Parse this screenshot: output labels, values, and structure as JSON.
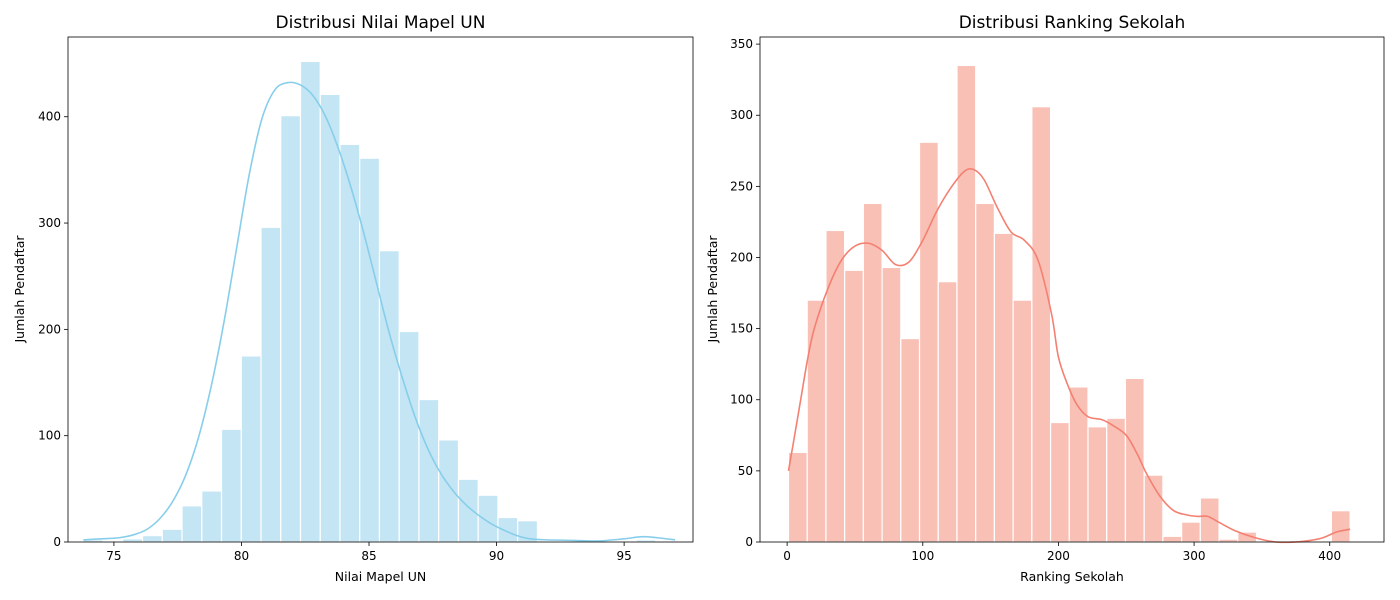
{
  "chart_data": [
    {
      "type": "histogram",
      "title": "Distribusi Nilai Mapel UN",
      "xlabel": "Nilai Mapel UN",
      "ylabel": "Jumlah Pendaftar",
      "xlim": [
        73.2,
        97.7
      ],
      "ylim": [
        0,
        475
      ],
      "xticks": [
        75,
        80,
        85,
        90,
        95
      ],
      "yticks": [
        0,
        100,
        200,
        300,
        400
      ],
      "bin_start": 73.8,
      "bin_width": 0.774,
      "counts": [
        2,
        0,
        3,
        6,
        12,
        34,
        48,
        106,
        175,
        296,
        401,
        452,
        421,
        374,
        361,
        274,
        198,
        134,
        96,
        59,
        44,
        23,
        20,
        0,
        1,
        2,
        0,
        0,
        2,
        1
      ],
      "kde": [
        [
          73.8,
          2
        ],
        [
          74.5,
          3
        ],
        [
          75.2,
          4
        ],
        [
          75.8,
          7
        ],
        [
          76.3,
          12
        ],
        [
          76.8,
          22
        ],
        [
          77.3,
          38
        ],
        [
          77.8,
          62
        ],
        [
          78.3,
          97
        ],
        [
          78.8,
          145
        ],
        [
          79.3,
          205
        ],
        [
          79.8,
          275
        ],
        [
          80.3,
          345
        ],
        [
          80.8,
          398
        ],
        [
          81.3,
          425
        ],
        [
          81.8,
          432
        ],
        [
          82.3,
          430
        ],
        [
          82.8,
          420
        ],
        [
          83.3,
          400
        ],
        [
          83.8,
          370
        ],
        [
          84.3,
          333
        ],
        [
          84.8,
          290
        ],
        [
          85.3,
          243
        ],
        [
          85.8,
          196
        ],
        [
          86.3,
          155
        ],
        [
          86.8,
          118
        ],
        [
          87.3,
          88
        ],
        [
          87.8,
          65
        ],
        [
          88.3,
          48
        ],
        [
          88.8,
          35
        ],
        [
          89.3,
          25
        ],
        [
          89.8,
          17
        ],
        [
          90.3,
          11
        ],
        [
          90.8,
          6
        ],
        [
          91.3,
          3
        ],
        [
          92,
          2
        ],
        [
          93,
          1.5
        ],
        [
          94,
          1
        ],
        [
          95,
          3
        ],
        [
          95.7,
          5
        ],
        [
          96.3,
          4
        ],
        [
          97,
          2
        ]
      ],
      "color_fill": "#c3e5f4",
      "color_line": "#87ceeb"
    },
    {
      "type": "histogram",
      "title": "Distribusi Ranking Sekolah",
      "xlabel": "Ranking Sekolah",
      "ylabel": "Jumlah Pendaftar",
      "xlim": [
        -20,
        440
      ],
      "ylim": [
        0,
        355
      ],
      "xticks": [
        0,
        100,
        200,
        300,
        400
      ],
      "yticks": [
        0,
        50,
        100,
        150,
        200,
        250,
        300,
        350
      ],
      "bin_start": 1,
      "bin_width": 13.8,
      "counts": [
        63,
        170,
        219,
        191,
        238,
        193,
        143,
        281,
        183,
        335,
        238,
        217,
        170,
        306,
        84,
        109,
        81,
        87,
        115,
        47,
        4,
        14,
        31,
        2,
        7,
        0,
        0,
        0,
        0,
        22
      ],
      "kde": [
        [
          1,
          50
        ],
        [
          5,
          72
        ],
        [
          10,
          100
        ],
        [
          15,
          128
        ],
        [
          20,
          150
        ],
        [
          30,
          178
        ],
        [
          40,
          198
        ],
        [
          50,
          208
        ],
        [
          60,
          210
        ],
        [
          70,
          205
        ],
        [
          80,
          195
        ],
        [
          90,
          197
        ],
        [
          100,
          212
        ],
        [
          110,
          232
        ],
        [
          120,
          248
        ],
        [
          130,
          260
        ],
        [
          137,
          262
        ],
        [
          145,
          255
        ],
        [
          155,
          235
        ],
        [
          165,
          218
        ],
        [
          175,
          212
        ],
        [
          185,
          198
        ],
        [
          195,
          160
        ],
        [
          200,
          130
        ],
        [
          207,
          110
        ],
        [
          214,
          96
        ],
        [
          222,
          88
        ],
        [
          232,
          86
        ],
        [
          240,
          82
        ],
        [
          250,
          75
        ],
        [
          258,
          62
        ],
        [
          265,
          48
        ],
        [
          275,
          32
        ],
        [
          285,
          22
        ],
        [
          295,
          19
        ],
        [
          303,
          18
        ],
        [
          310,
          18
        ],
        [
          318,
          14
        ],
        [
          330,
          8
        ],
        [
          345,
          3
        ],
        [
          360,
          0
        ],
        [
          375,
          0
        ],
        [
          385,
          1
        ],
        [
          395,
          3
        ],
        [
          405,
          7
        ],
        [
          415,
          9
        ]
      ],
      "color_fill": "#f9c0b6",
      "color_line": "#f48072"
    }
  ]
}
